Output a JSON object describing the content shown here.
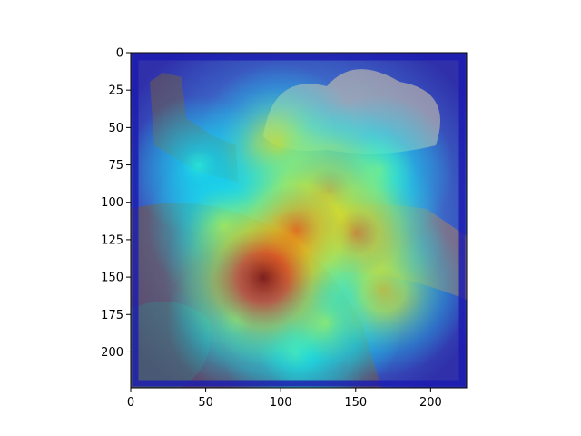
{
  "chart_data": {
    "type": "heatmap",
    "title": "",
    "xlabel": "",
    "ylabel": "",
    "xlim": [
      0,
      223
    ],
    "ylim": [
      223,
      0
    ],
    "x_ticks": [
      0,
      50,
      100,
      150,
      200
    ],
    "y_ticks": [
      0,
      25,
      50,
      75,
      100,
      125,
      150,
      175,
      200
    ],
    "image_size": [
      224,
      224
    ],
    "image_description": "engraved landscape of a rocky hillside with castle ruins at upper left, billowing clouds and a valley, overlaid with a jet-colormap attention heatmap",
    "colormap": "jet",
    "heatmap_hotspots": [
      {
        "x": 88,
        "y": 150,
        "intensity": 1.0
      },
      {
        "x": 110,
        "y": 118,
        "intensity": 0.85
      },
      {
        "x": 132,
        "y": 92,
        "intensity": 0.8
      },
      {
        "x": 150,
        "y": 120,
        "intensity": 0.8
      },
      {
        "x": 168,
        "y": 158,
        "intensity": 0.7
      },
      {
        "x": 98,
        "y": 62,
        "intensity": 0.65
      },
      {
        "x": 62,
        "y": 115,
        "intensity": 0.55
      },
      {
        "x": 130,
        "y": 180,
        "intensity": 0.55
      },
      {
        "x": 165,
        "y": 78,
        "intensity": 0.5
      },
      {
        "x": 45,
        "y": 75,
        "intensity": 0.4
      },
      {
        "x": 110,
        "y": 200,
        "intensity": 0.45
      },
      {
        "x": 70,
        "y": 178,
        "intensity": 0.4
      }
    ],
    "grid": false,
    "legend": "none",
    "colors": {
      "frame": "#000000",
      "heat_low": "#1a1aa8",
      "heat_mid": "#35c8e0",
      "heat_high": "#ffe23a",
      "heat_max": "#c81e1e"
    }
  }
}
